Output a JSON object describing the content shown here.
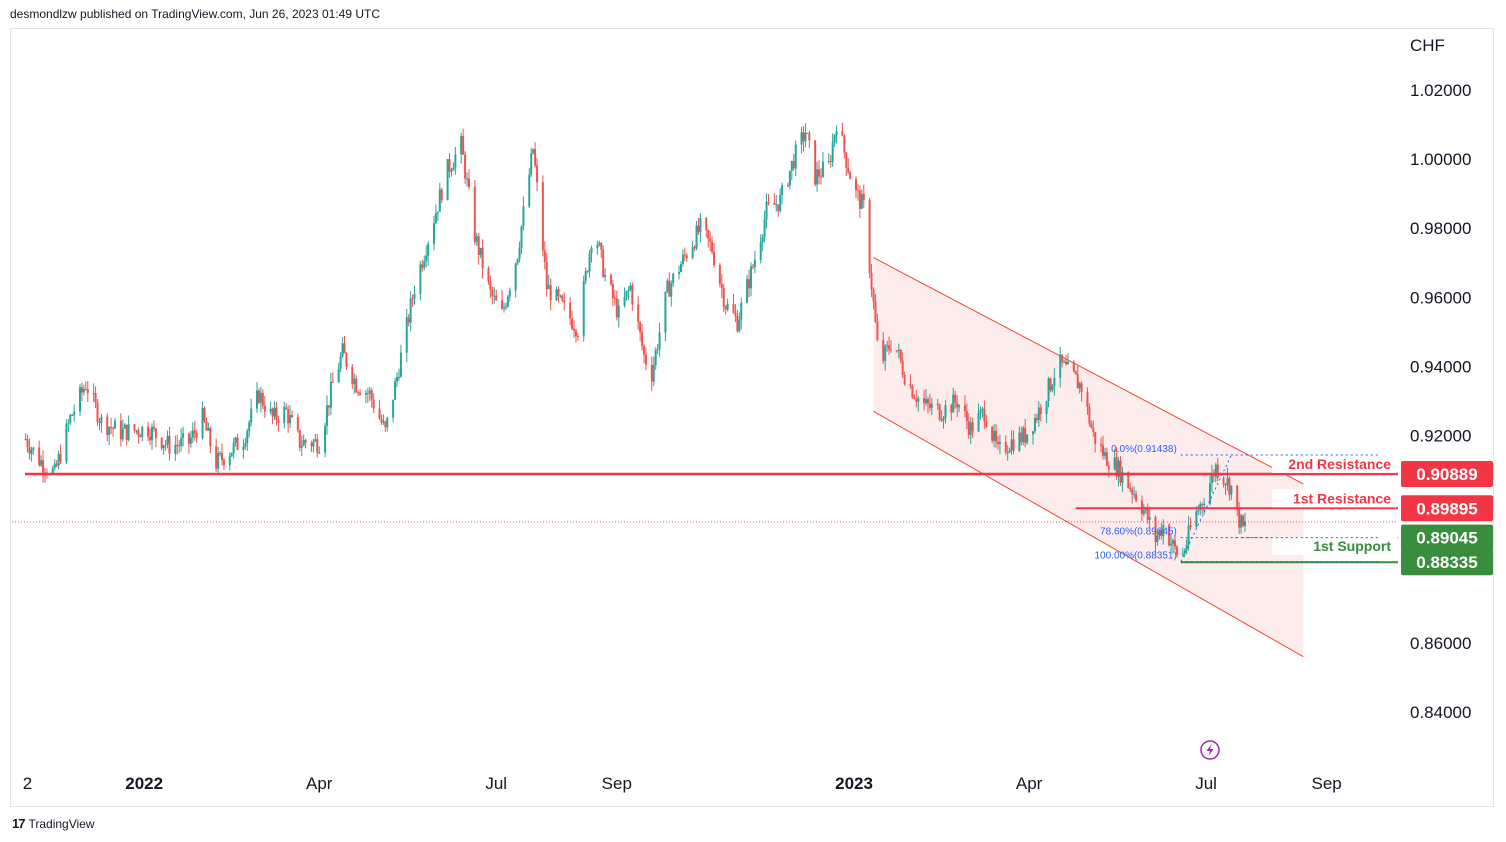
{
  "header": {
    "publisher_line": "desmondlzw published on TradingView.com, Jun 26, 2023 01:49 UTC"
  },
  "footer": {
    "brand": "TradingView",
    "logo_glyph": "17"
  },
  "colors": {
    "up": "#26a69a",
    "down": "#ef5350",
    "resistance": "#f23645",
    "support": "#388e3c",
    "fib": "#2962ff",
    "channel_fill": "#fde9e9",
    "channel_line": "#f44336"
  },
  "chart_data": {
    "type": "candlestick",
    "currency_label": "CHF",
    "y_ticks": [
      "1.02000",
      "1.00000",
      "0.98000",
      "0.96000",
      "0.94000",
      "0.92000",
      "0.86000",
      "0.84000"
    ],
    "y_tick_values": [
      1.02,
      1.0,
      0.98,
      0.96,
      0.94,
      0.92,
      0.86,
      0.84
    ],
    "ylim": [
      0.828,
      1.035
    ],
    "x_ticks": [
      {
        "label": "2",
        "bold": false,
        "date": "2021-11-02"
      },
      {
        "label": "2022",
        "bold": true,
        "date": "2022-01-01"
      },
      {
        "label": "Apr",
        "bold": false,
        "date": "2022-04-01"
      },
      {
        "label": "Jul",
        "bold": false,
        "date": "2022-07-01"
      },
      {
        "label": "Sep",
        "bold": false,
        "date": "2022-09-01"
      },
      {
        "label": "2023",
        "bold": true,
        "date": "2023-01-01"
      },
      {
        "label": "Apr",
        "bold": false,
        "date": "2023-04-01"
      },
      {
        "label": "Jul",
        "bold": false,
        "date": "2023-07-01"
      },
      {
        "label": "Sep",
        "bold": false,
        "date": "2023-09-01"
      }
    ],
    "price_path": [
      [
        "2021-11-01",
        0.919
      ],
      [
        "2021-11-08",
        0.913
      ],
      [
        "2021-11-16",
        0.909
      ],
      [
        "2021-11-24",
        0.925
      ],
      [
        "2021-12-02",
        0.935
      ],
      [
        "2021-12-10",
        0.924
      ],
      [
        "2021-12-20",
        0.921
      ],
      [
        "2022-01-03",
        0.922
      ],
      [
        "2022-01-14",
        0.917
      ],
      [
        "2022-01-24",
        0.918
      ],
      [
        "2022-01-31",
        0.925
      ],
      [
        "2022-02-07",
        0.912
      ],
      [
        "2022-02-21",
        0.919
      ],
      [
        "2022-03-01",
        0.932
      ],
      [
        "2022-03-08",
        0.925
      ],
      [
        "2022-03-15",
        0.927
      ],
      [
        "2022-03-22",
        0.918
      ],
      [
        "2022-04-01",
        0.918
      ],
      [
        "2022-04-08",
        0.935
      ],
      [
        "2022-04-13",
        0.944
      ],
      [
        "2022-04-20",
        0.935
      ],
      [
        "2022-04-27",
        0.932
      ],
      [
        "2022-05-05",
        0.921
      ],
      [
        "2022-05-11",
        0.937
      ],
      [
        "2022-05-20",
        0.963
      ],
      [
        "2022-05-28",
        0.979
      ],
      [
        "2022-06-06",
        0.997
      ],
      [
        "2022-06-13",
        1.004
      ],
      [
        "2022-06-20",
        0.978
      ],
      [
        "2022-06-28",
        0.961
      ],
      [
        "2022-07-04",
        0.955
      ],
      [
        "2022-07-12",
        0.973
      ],
      [
        "2022-07-20",
        1.003
      ],
      [
        "2022-07-27",
        0.963
      ],
      [
        "2022-08-03",
        0.958
      ],
      [
        "2022-08-12",
        0.951
      ],
      [
        "2022-08-20",
        0.981
      ],
      [
        "2022-08-26",
        0.966
      ],
      [
        "2022-09-02",
        0.955
      ],
      [
        "2022-09-08",
        0.963
      ],
      [
        "2022-09-15",
        0.943
      ],
      [
        "2022-09-19",
        0.938
      ],
      [
        "2022-09-27",
        0.962
      ],
      [
        "2022-10-07",
        0.973
      ],
      [
        "2022-10-14",
        0.98
      ],
      [
        "2022-10-20",
        0.974
      ],
      [
        "2022-10-27",
        0.958
      ],
      [
        "2022-11-02",
        0.953
      ],
      [
        "2022-11-10",
        0.969
      ],
      [
        "2022-11-17",
        0.985
      ],
      [
        "2022-11-24",
        0.988
      ],
      [
        "2022-12-01",
        1.0
      ],
      [
        "2022-12-07",
        1.008
      ],
      [
        "2022-12-12",
        0.995
      ],
      [
        "2022-12-19",
        0.998
      ],
      [
        "2022-12-23",
        1.011
      ],
      [
        "2023-01-01",
        0.991
      ],
      [
        "2023-01-06",
        0.986
      ],
      [
        "2023-01-11",
        0.958
      ],
      [
        "2023-01-14",
        0.94
      ],
      [
        "2023-01-21",
        0.948
      ],
      [
        "2023-01-28",
        0.936
      ],
      [
        "2023-02-05",
        0.929
      ],
      [
        "2023-02-15",
        0.927
      ],
      [
        "2023-02-23",
        0.93
      ],
      [
        "2023-03-02",
        0.922
      ],
      [
        "2023-03-09",
        0.927
      ],
      [
        "2023-03-16",
        0.915
      ],
      [
        "2023-03-22",
        0.918
      ],
      [
        "2023-03-30",
        0.92
      ],
      [
        "2023-04-05",
        0.926
      ],
      [
        "2023-04-12",
        0.935
      ],
      [
        "2023-04-16",
        0.941
      ],
      [
        "2023-04-22",
        0.938
      ],
      [
        "2023-04-28",
        0.934
      ],
      [
        "2023-05-04",
        0.92
      ],
      [
        "2023-05-10",
        0.914
      ],
      [
        "2023-05-16",
        0.911
      ],
      [
        "2023-05-22",
        0.906
      ],
      [
        "2023-05-27",
        0.902
      ],
      [
        "2023-06-01",
        0.896
      ],
      [
        "2023-06-05",
        0.89
      ],
      [
        "2023-06-09",
        0.894
      ],
      [
        "2023-06-14",
        0.888
      ],
      [
        "2023-06-18",
        0.884
      ],
      [
        "2023-06-21",
        0.889
      ],
      [
        "2023-06-24",
        0.895
      ],
      [
        "2023-06-28",
        0.9
      ],
      [
        "2023-07-02",
        0.905
      ],
      [
        "2023-07-06",
        0.911
      ],
      [
        "2023-07-10",
        0.908
      ],
      [
        "2023-07-14",
        0.905
      ],
      [
        "2023-07-17",
        0.897
      ],
      [
        "2023-07-20",
        0.893
      ],
      [
        "2023-07-23",
        0.896
      ]
    ],
    "channel": {
      "upper": [
        [
          "2023-01-11",
          0.9715
        ],
        [
          "2023-08-20",
          0.906
        ]
      ],
      "lower": [
        [
          "2023-01-11",
          0.927
        ],
        [
          "2023-08-20",
          0.856
        ]
      ]
    },
    "levels": [
      {
        "name": "2nd Resistance",
        "value": 0.90889,
        "label": "0.90889",
        "type": "resistance"
      },
      {
        "name": "1st Resistance",
        "value": 0.89895,
        "label": "0.89895",
        "type": "resistance"
      },
      {
        "name": "",
        "value": 0.89045,
        "label": "0.89045",
        "type": "support"
      },
      {
        "name": "1st Support",
        "value": 0.88335,
        "label": "0.88335",
        "type": "support"
      }
    ],
    "fibonacci": [
      {
        "level_label": "0.0%(0.91438)",
        "value": 0.91438
      },
      {
        "level_label": "78.60%(0.89045)",
        "value": 0.89045
      },
      {
        "level_label": "100.00%(0.88351)",
        "value": 0.88351
      }
    ],
    "current_price": 0.895,
    "grid": false,
    "icon": "lightning-icon"
  }
}
